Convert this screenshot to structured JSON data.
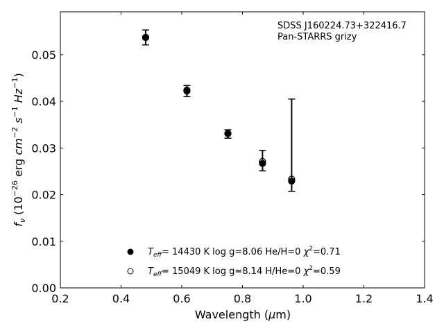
{
  "chart_data": {
    "type": "scatter",
    "title_lines": [
      "SDSS J160224.73+322416.7",
      "Pan-STARRS grizy"
    ],
    "xlabel": {
      "main": "Wavelength (",
      "mu": "μ",
      "end": "m)"
    },
    "ylabel": {
      "f": "f",
      "nu": "ν",
      "pre": " (10",
      "e1": "−26",
      "mid": " erg ",
      "cm": "cm",
      "e2": "−2",
      "s": " s",
      "e3": "−1",
      "hz": " Hz",
      "e4": "−1",
      "close": ")"
    },
    "xlim": [
      0.2,
      1.4
    ],
    "ylim": [
      0.0,
      0.0592
    ],
    "xticks": [
      0.2,
      0.4,
      0.6,
      0.8,
      1.0,
      1.2,
      1.4
    ],
    "xtick_labels": [
      "0.2",
      "0.4",
      "0.6",
      "0.8",
      "1.0",
      "1.2",
      "1.4"
    ],
    "yticks": [
      0.0,
      0.01,
      0.02,
      0.03,
      0.04,
      0.05
    ],
    "ytick_labels": [
      "0.00",
      "0.01",
      "0.02",
      "0.03",
      "0.04",
      "0.05"
    ],
    "observed": [
      {
        "x": 0.481,
        "y": 0.0537,
        "lo": 0.0521,
        "hi": 0.0553
      },
      {
        "x": 0.617,
        "y": 0.0422,
        "lo": 0.041,
        "hi": 0.0434
      },
      {
        "x": 0.752,
        "y": 0.033,
        "lo": 0.0321,
        "hi": 0.0339
      },
      {
        "x": 0.866,
        "y": 0.0267,
        "lo": 0.0251,
        "hi": 0.0295
      },
      {
        "x": 0.962,
        "y": 0.0229,
        "lo": 0.0207,
        "hi": 0.0405
      }
    ],
    "series": [
      {
        "marker": "filled",
        "values": [
          0.0537,
          0.0424,
          0.0331,
          0.0267,
          0.0229
        ]
      },
      {
        "marker": "open",
        "values": [
          0.0537,
          0.0422,
          0.0331,
          0.0271,
          0.0233
        ]
      }
    ],
    "legend": [
      {
        "marker": "filled",
        "t": "T",
        "sub": "eff",
        "text": "= 14430 K  log g=8.06  He/H=0  ",
        "chi": "χ",
        "sup": "2",
        "val": "=0.71"
      },
      {
        "marker": "open",
        "t": "T",
        "sub": "eff",
        "text": "= 15049 K  log g=8.14  H/He=0  ",
        "chi": "χ",
        "sup": "2",
        "val": "=0.59"
      }
    ]
  }
}
